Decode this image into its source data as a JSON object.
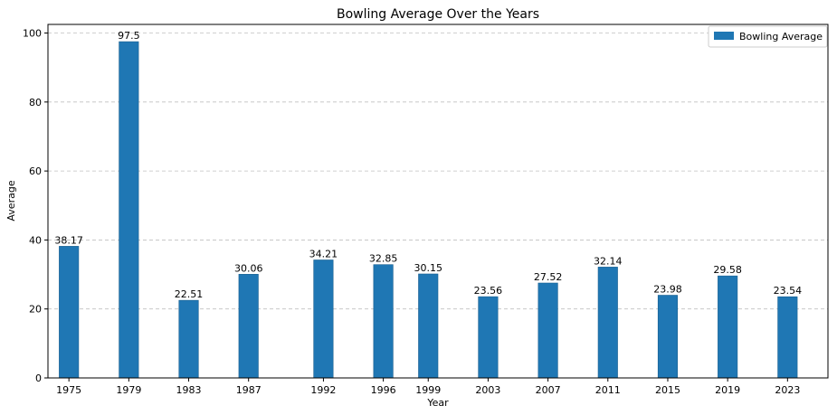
{
  "chart_data": {
    "type": "bar",
    "title": "Bowling Average Over the Years",
    "xlabel": "Year",
    "ylabel": "Average",
    "x": [
      1975,
      1979,
      1983,
      1987,
      1992,
      1996,
      1999,
      2003,
      2007,
      2011,
      2015,
      2019,
      2023
    ],
    "values": [
      38.17,
      97.5,
      22.51,
      30.06,
      34.21,
      32.85,
      30.15,
      23.56,
      27.52,
      32.14,
      23.98,
      29.58,
      23.54
    ],
    "data_labels": [
      "38.17",
      "97.5",
      "22.51",
      "30.06",
      "34.21",
      "32.85",
      "30.15",
      "23.56",
      "27.52",
      "32.14",
      "23.98",
      "29.58",
      "23.54"
    ],
    "xticks": [
      "1975",
      "1979",
      "1983",
      "1987",
      "1992",
      "1996",
      "1999",
      "2003",
      "2007",
      "2011",
      "2015",
      "2019",
      "2023"
    ],
    "yticks": [
      0,
      20,
      40,
      60,
      80,
      100
    ],
    "ylim": [
      0,
      102.5
    ],
    "xlim": [
      1973.6,
      2025.7
    ],
    "grid": "y-dashed",
    "legend": {
      "position": "top-right",
      "entries": [
        "Bowling Average"
      ]
    },
    "colors": {
      "bar": "#1f77b4",
      "bar_edge": "#1a5f8f",
      "grid": "#c0c0c0"
    }
  }
}
